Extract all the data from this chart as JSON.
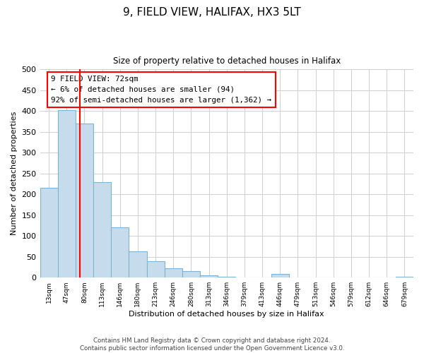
{
  "title": "9, FIELD VIEW, HALIFAX, HX3 5LT",
  "subtitle": "Size of property relative to detached houses in Halifax",
  "xlabel": "Distribution of detached houses by size in Halifax",
  "ylabel": "Number of detached properties",
  "bar_labels": [
    "13sqm",
    "47sqm",
    "80sqm",
    "113sqm",
    "146sqm",
    "180sqm",
    "213sqm",
    "246sqm",
    "280sqm",
    "313sqm",
    "346sqm",
    "379sqm",
    "413sqm",
    "446sqm",
    "479sqm",
    "513sqm",
    "546sqm",
    "579sqm",
    "612sqm",
    "646sqm",
    "679sqm"
  ],
  "bar_values": [
    215,
    403,
    370,
    230,
    120,
    63,
    40,
    22,
    15,
    5,
    2,
    0,
    0,
    8,
    0,
    0,
    0,
    0,
    0,
    0,
    2
  ],
  "bar_color": "#c6dcec",
  "bar_edgecolor": "#7fb3d3",
  "vline_color": "red",
  "vline_x_index": 1.75,
  "annotation_text": "9 FIELD VIEW: 72sqm\n← 6% of detached houses are smaller (94)\n92% of semi-detached houses are larger (1,362) →",
  "annotation_box_color": "white",
  "annotation_box_edgecolor": "red",
  "ylim": [
    0,
    500
  ],
  "yticks": [
    0,
    50,
    100,
    150,
    200,
    250,
    300,
    350,
    400,
    450,
    500
  ],
  "footer": "Contains HM Land Registry data © Crown copyright and database right 2024.\nContains public sector information licensed under the Open Government Licence v3.0.",
  "background_color": "white",
  "grid_color": "#d0d0d0"
}
